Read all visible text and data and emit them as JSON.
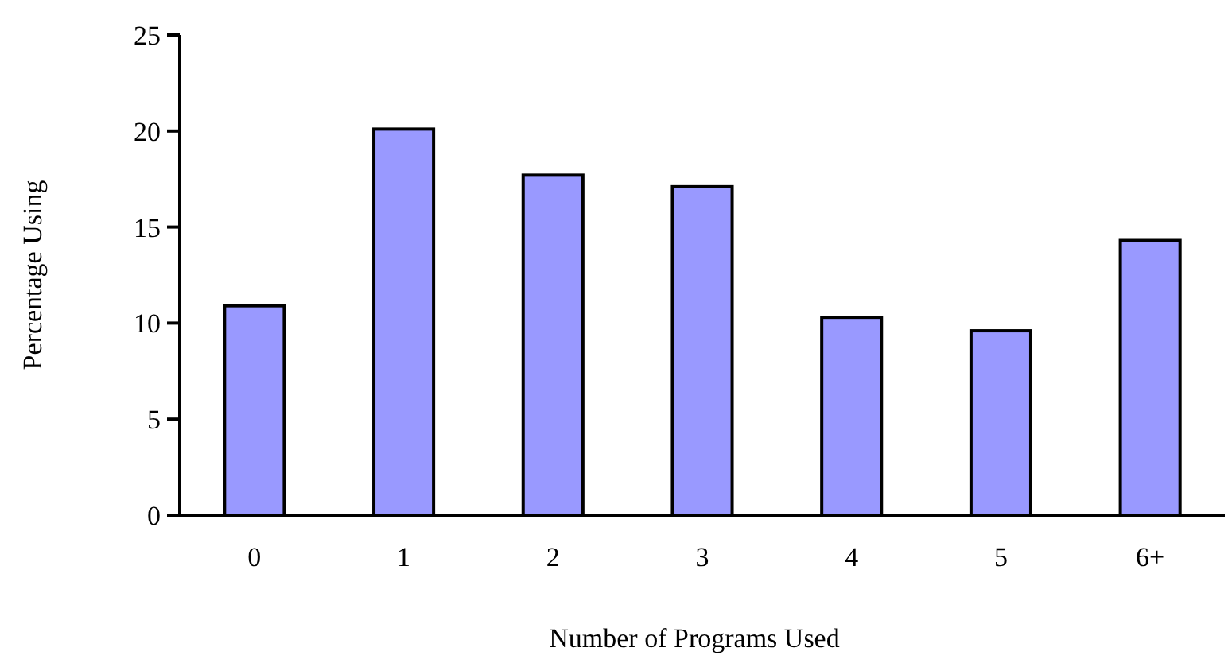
{
  "chart_data": {
    "type": "bar",
    "xlabel": "Number of Programs Used",
    "ylabel": "Percentage Using",
    "categories": [
      "0",
      "1",
      "2",
      "3",
      "4",
      "5",
      "6+"
    ],
    "values": [
      10.9,
      20.1,
      17.7,
      17.1,
      10.3,
      9.6,
      14.3
    ],
    "color": "#9999ff",
    "ylim": [
      0,
      25
    ],
    "yticks": [
      0,
      5,
      10,
      15,
      20,
      25
    ],
    "grid": false
  }
}
